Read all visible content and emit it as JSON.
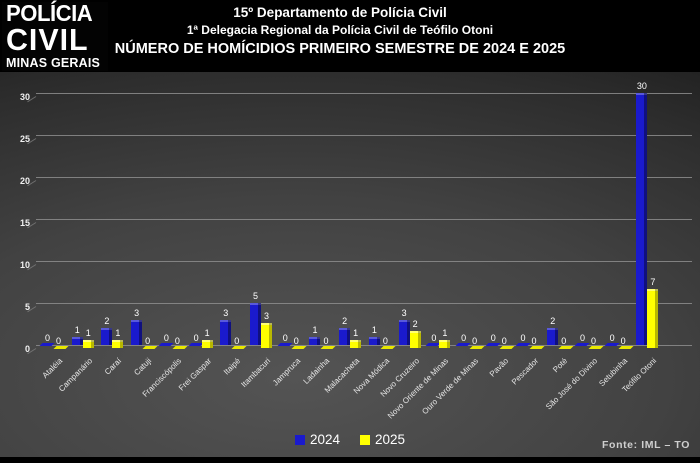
{
  "header": {
    "logo_line1": "POLÍCIA",
    "logo_line2": "CIVIL",
    "logo_line3": "MINAS GERAIS",
    "title_line1": "15º Departamento de Polícia Civil",
    "title_line2": "1ª Delegacia Regional da Polícia Civil de Teófilo Otoni",
    "title_line3": "NÚMERO DE HOMÍCIDIOS PRIMEIRO SEMESTRE DE 2024 E 2025"
  },
  "chart_data": {
    "type": "bar",
    "title": "NÚMERO DE HOMÍCIDIOS PRIMEIRO SEMESTRE DE 2024 E 2025",
    "categories": [
      "Ataléia",
      "Campanário",
      "Caraí",
      "Catuji",
      "Franciscópolis",
      "Frei Gaspar",
      "Itaipé",
      "Itambacuri",
      "Jampruca",
      "Ladainha",
      "Malacacheta",
      "Nova Módica",
      "Novo Cruzeiro",
      "Novo Oriente de Minas",
      "Ouro Verde de Minas",
      "Pavão",
      "Pescador",
      "Poté",
      "São José do Divino",
      "Setubinha",
      "Teófilo Otoni"
    ],
    "series": [
      {
        "name": "2024",
        "color": "#1a1acd",
        "values": [
          0,
          1,
          2,
          3,
          0,
          0,
          3,
          5,
          0,
          1,
          2,
          1,
          3,
          0,
          0,
          0,
          0,
          2,
          0,
          0,
          30
        ]
      },
      {
        "name": "2025",
        "color": "#ffff00",
        "values": [
          0,
          1,
          1,
          0,
          0,
          1,
          0,
          3,
          0,
          0,
          1,
          0,
          2,
          1,
          0,
          0,
          0,
          0,
          0,
          0,
          7
        ]
      }
    ],
    "xlabel": "",
    "ylabel": "",
    "ylim": [
      0,
      30
    ],
    "yticks": [
      0,
      5,
      10,
      15,
      20,
      25,
      30
    ],
    "grid": true,
    "data_labels": true,
    "legend_position": "bottom"
  },
  "footer": {
    "source": "Fonte: IML – TO"
  },
  "colors": {
    "bar_2024": "#1a1acd",
    "bar_2025": "#ffff00",
    "background": "#000000"
  }
}
